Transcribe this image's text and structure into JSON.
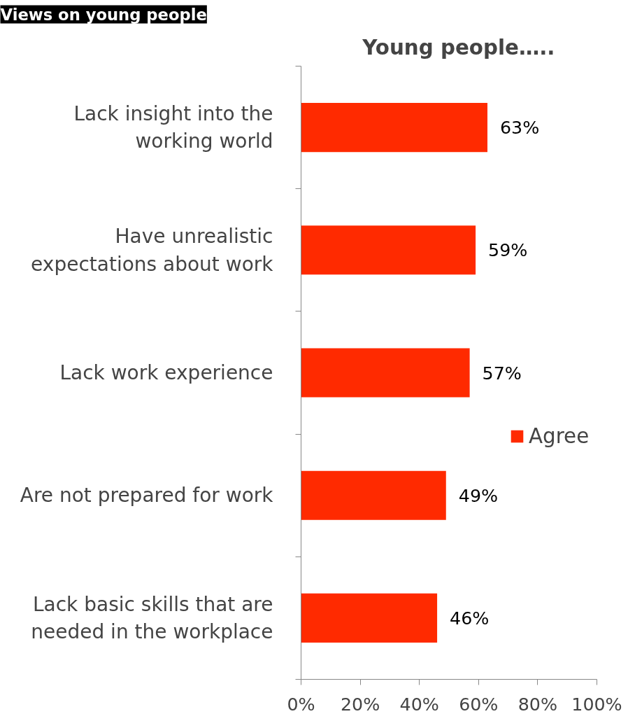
{
  "chart_data": {
    "type": "bar",
    "orientation": "horizontal",
    "title": "Views on young people",
    "subtitle": "Young people…..",
    "categories": [
      "Lack insight into the\nworking world",
      "Have unrealistic\nexpectations about work",
      "Lack work experience",
      "Are not prepared for work",
      "Lack basic skills that are\nneeded in the workplace"
    ],
    "series": [
      {
        "name": "Agree",
        "color": "#ff2a00",
        "values": [
          63,
          59,
          57,
          49,
          46
        ],
        "value_labels": [
          "63%",
          "59%",
          "57%",
          "49%",
          "46%"
        ]
      }
    ],
    "xlim": [
      0,
      100
    ],
    "xticks": [
      {
        "value": 0,
        "label": "0%"
      },
      {
        "value": 20,
        "label": "20%"
      },
      {
        "value": 40,
        "label": "40%"
      },
      {
        "value": 60,
        "label": "60%"
      },
      {
        "value": 80,
        "label": "80%"
      },
      {
        "value": 100,
        "label": "100%"
      }
    ],
    "grid": false,
    "legend": "right"
  }
}
